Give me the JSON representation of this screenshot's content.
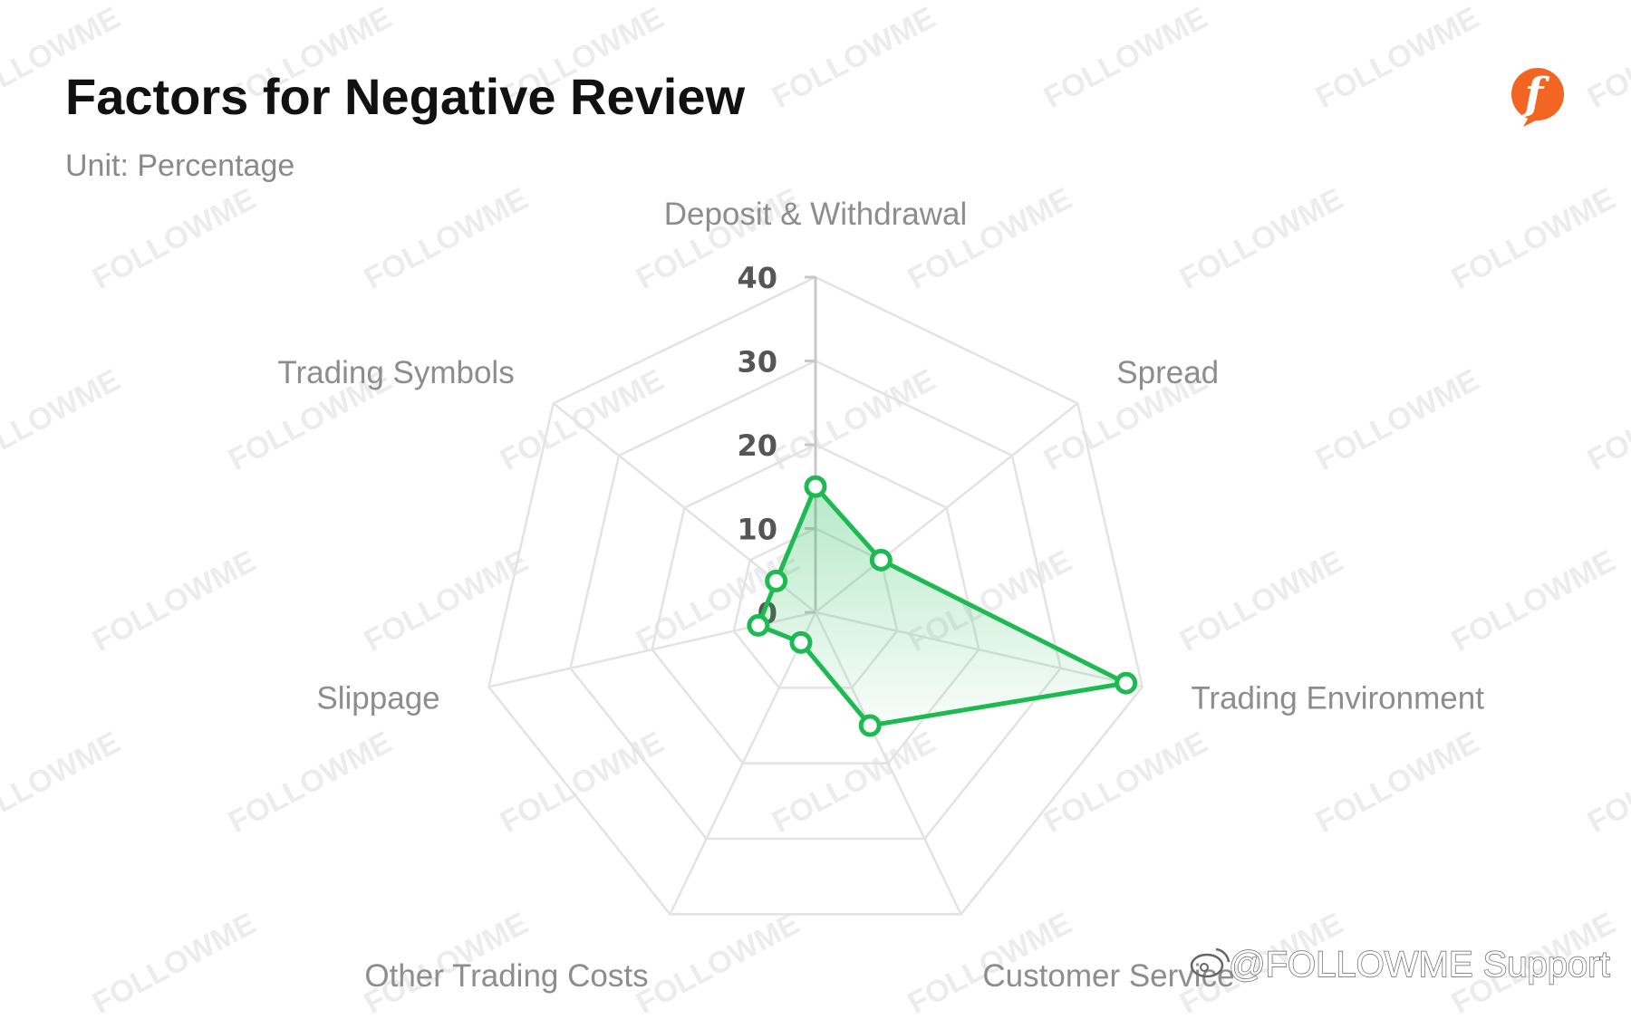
{
  "header": {
    "title": "Factors for Negative Review",
    "subtitle": "Unit: Percentage"
  },
  "logo": {
    "icon": "followme-logo-icon",
    "color": "#f26522",
    "letter": "f"
  },
  "watermark": {
    "text": "FOLLOWME"
  },
  "credit": {
    "icon": "weibo-icon",
    "text": "@FOLLOWME Support"
  },
  "colors": {
    "series": "#1dba52",
    "grid": "#e3e3e3",
    "axis": "#c8c8c8"
  },
  "chart_data": {
    "type": "radar",
    "title": "Factors for Negative Review",
    "subtitle": "Unit: Percentage",
    "categories": [
      "Deposit & Withdrawal",
      "Spread",
      "Trading Environment",
      "Customer Service",
      "Other Trading Costs",
      "Slippage",
      "Trading Symbols"
    ],
    "series": [
      {
        "values": [
          15,
          10,
          38,
          15,
          4,
          7,
          6
        ]
      }
    ],
    "rlim": [
      0,
      40
    ],
    "ticks": [
      "0",
      "10",
      "20",
      "30",
      "40"
    ],
    "grid": true,
    "legend": "none"
  }
}
